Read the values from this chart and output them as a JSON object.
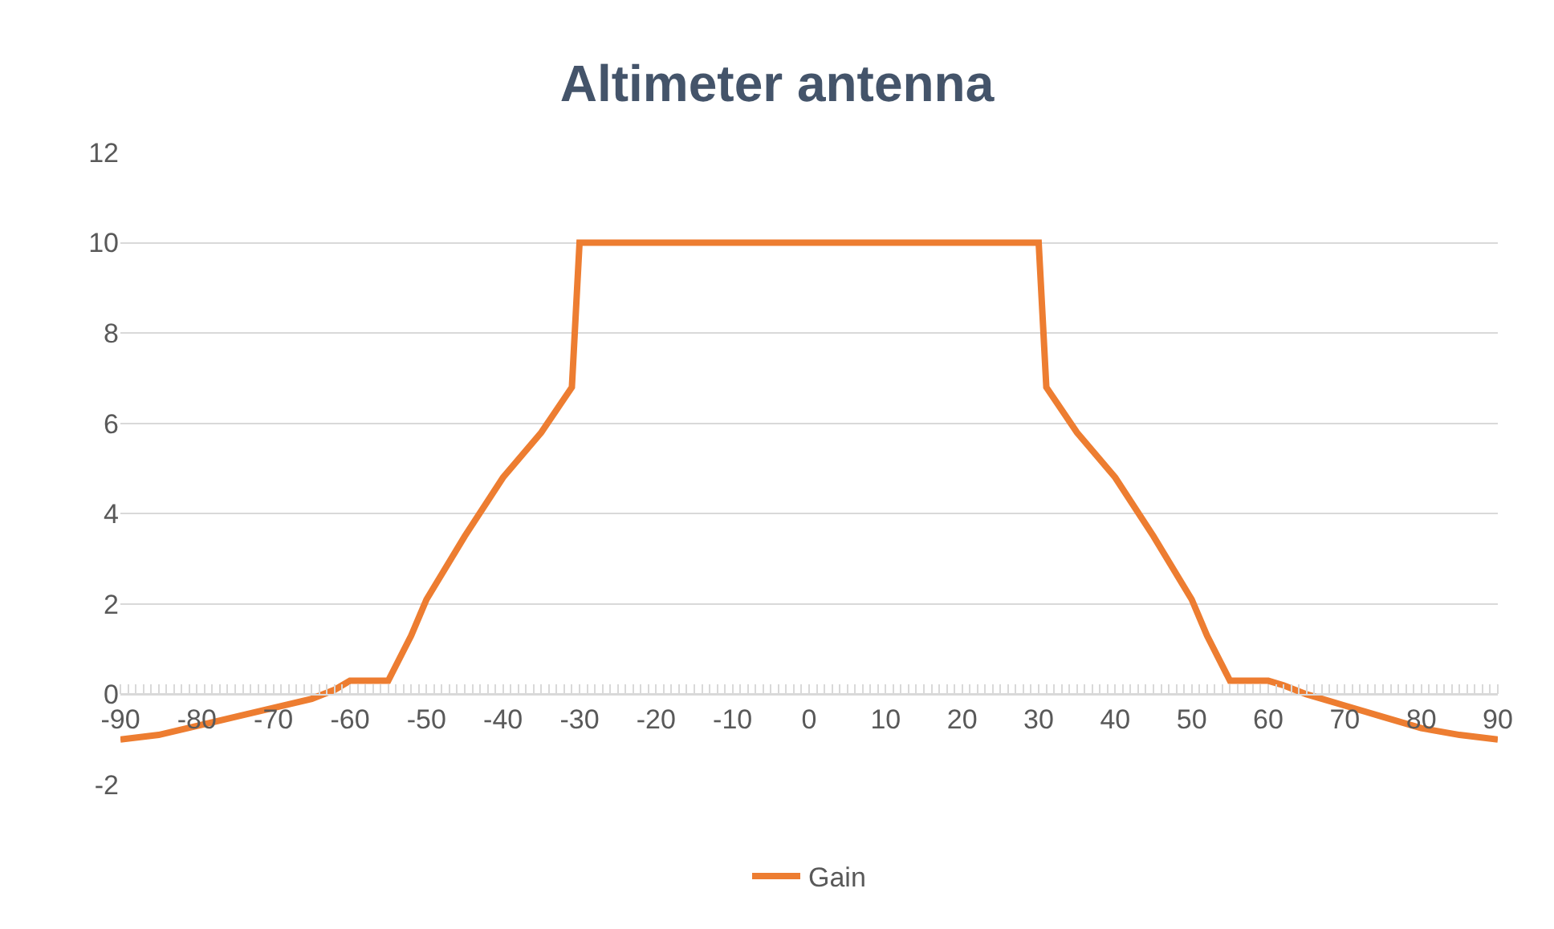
{
  "chart_data": {
    "type": "line",
    "title": "Altimeter antenna",
    "x": [
      -90,
      -85,
      -80,
      -75,
      -70,
      -65,
      -62,
      -60,
      -55,
      -52,
      -50,
      -45,
      -40,
      -35,
      -31,
      -30,
      30,
      31,
      35,
      40,
      45,
      50,
      52,
      55,
      60,
      62,
      65,
      70,
      75,
      80,
      85,
      90
    ],
    "series": [
      {
        "name": "Gain",
        "color": "#ed7d31",
        "values": [
          -1.0,
          -0.9,
          -0.7,
          -0.5,
          -0.3,
          -0.1,
          0.1,
          0.3,
          0.3,
          1.3,
          2.1,
          3.5,
          4.8,
          5.8,
          6.8,
          10,
          10,
          6.8,
          5.8,
          4.8,
          3.5,
          2.1,
          1.3,
          0.3,
          0.3,
          0.2,
          0,
          -0.25,
          -0.5,
          -0.75,
          -0.9,
          -1.0
        ]
      }
    ],
    "xlim": [
      -90,
      90
    ],
    "xticks": [
      -90,
      -80,
      -70,
      -60,
      -50,
      -40,
      -30,
      -20,
      -10,
      0,
      10,
      20,
      30,
      40,
      50,
      60,
      70,
      80,
      90
    ],
    "ylim": [
      -2,
      12
    ],
    "yticks": [
      -2,
      0,
      2,
      4,
      6,
      8,
      10,
      12
    ],
    "grid": "y",
    "legend": "bottom",
    "marker": "none",
    "line_style": "solid"
  }
}
